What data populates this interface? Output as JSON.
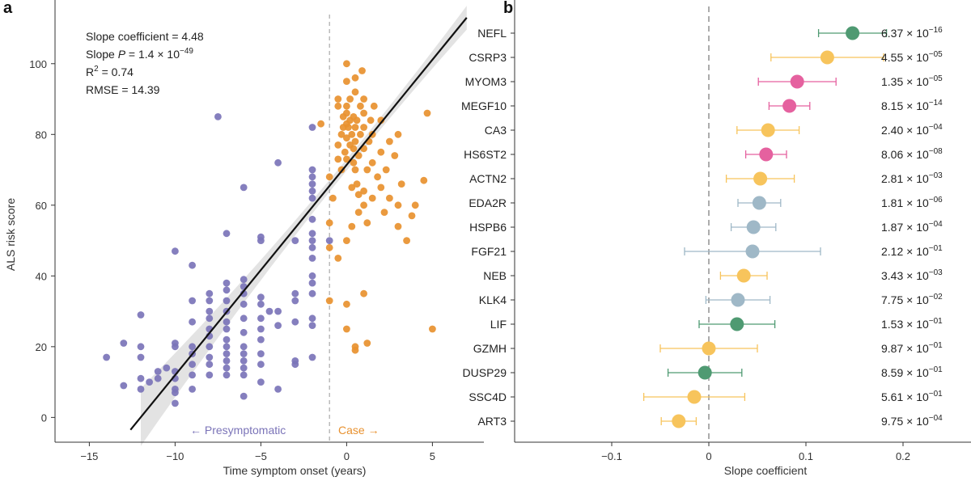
{
  "chart_data": [
    {
      "type": "scatter",
      "panel_label": "a",
      "xlabel": "Time symptom onset (years)",
      "ylabel": "ALS risk score",
      "xlim": [
        -17,
        8
      ],
      "ylim": [
        -7,
        118
      ],
      "xticks": [
        -15,
        -10,
        -5,
        0,
        5
      ],
      "yticks": [
        0,
        20,
        40,
        60,
        80,
        100
      ],
      "xtick_labels": [
        "−15",
        "−10",
        "−5",
        "0",
        "5"
      ],
      "ytick_labels": [
        "0",
        "20",
        "40",
        "60",
        "80",
        "100"
      ],
      "onset_line_x": -1,
      "annotations": {
        "presymptomatic": "← Presymptomatic",
        "case": "Case →"
      },
      "stats": {
        "slope": "Slope coefficient = 4.48",
        "slope_p_prefix": "Slope ",
        "slope_p_italic": "P",
        "slope_p_mid": " = 1.4 × 10",
        "slope_p_exp": "−49",
        "r2_prefix": "R",
        "r2_sup": "2",
        "r2_suffix": " = 0.74",
        "rmse": "RMSE = 14.39"
      },
      "regression": {
        "x": [
          -12.6,
          7.0
        ],
        "y": [
          -3.5,
          113
        ]
      },
      "series": [
        {
          "color": "#7b74b8",
          "points": [
            [
              -14,
              17
            ],
            [
              -13,
              9
            ],
            [
              -13,
              21
            ],
            [
              -12,
              8
            ],
            [
              -12,
              11
            ],
            [
              -12,
              17
            ],
            [
              -12,
              20
            ],
            [
              -12,
              29
            ],
            [
              -11.5,
              10
            ],
            [
              -11,
              11
            ],
            [
              -11,
              13
            ],
            [
              -10.5,
              14
            ],
            [
              -10,
              4
            ],
            [
              -10,
              7
            ],
            [
              -10,
              8
            ],
            [
              -10,
              11
            ],
            [
              -10,
              13
            ],
            [
              -10,
              20
            ],
            [
              -10,
              21
            ],
            [
              -10,
              47
            ],
            [
              -9,
              8
            ],
            [
              -9,
              12
            ],
            [
              -9,
              15
            ],
            [
              -9,
              18
            ],
            [
              -9,
              20
            ],
            [
              -9,
              27
            ],
            [
              -9,
              33
            ],
            [
              -9,
              43
            ],
            [
              -8,
              12
            ],
            [
              -8,
              15
            ],
            [
              -8,
              17
            ],
            [
              -8,
              20
            ],
            [
              -8,
              23
            ],
            [
              -8,
              25
            ],
            [
              -8,
              28
            ],
            [
              -8,
              30
            ],
            [
              -8,
              33
            ],
            [
              -8,
              35
            ],
            [
              -7.5,
              85
            ],
            [
              -7,
              12
            ],
            [
              -7,
              14
            ],
            [
              -7,
              16
            ],
            [
              -7,
              18
            ],
            [
              -7,
              20
            ],
            [
              -7,
              22
            ],
            [
              -7,
              25
            ],
            [
              -7,
              27
            ],
            [
              -7,
              30
            ],
            [
              -7,
              33
            ],
            [
              -7,
              36
            ],
            [
              -7,
              38
            ],
            [
              -7,
              52
            ],
            [
              -6,
              6
            ],
            [
              -6,
              12
            ],
            [
              -6,
              14
            ],
            [
              -6,
              16
            ],
            [
              -6,
              18
            ],
            [
              -6,
              20
            ],
            [
              -6,
              24
            ],
            [
              -6,
              28
            ],
            [
              -6,
              32
            ],
            [
              -6,
              35
            ],
            [
              -6,
              37
            ],
            [
              -6,
              39
            ],
            [
              -6,
              65
            ],
            [
              -5,
              10
            ],
            [
              -5,
              15
            ],
            [
              -5,
              18
            ],
            [
              -5,
              22
            ],
            [
              -5,
              25
            ],
            [
              -5,
              28
            ],
            [
              -5,
              32
            ],
            [
              -5,
              34
            ],
            [
              -5,
              50
            ],
            [
              -5,
              51
            ],
            [
              -4.5,
              30
            ],
            [
              -4,
              8
            ],
            [
              -4,
              26
            ],
            [
              -4,
              30
            ],
            [
              -4,
              72
            ],
            [
              -3,
              15
            ],
            [
              -3,
              16
            ],
            [
              -3,
              27
            ],
            [
              -3,
              33
            ],
            [
              -3,
              35
            ],
            [
              -3,
              50
            ],
            [
              -2,
              17
            ],
            [
              -2,
              26
            ],
            [
              -2,
              28
            ],
            [
              -2,
              35
            ],
            [
              -2,
              38
            ],
            [
              -2,
              40
            ],
            [
              -2,
              45
            ],
            [
              -2,
              48
            ],
            [
              -2,
              50
            ],
            [
              -2,
              52
            ],
            [
              -2,
              56
            ],
            [
              -2,
              62
            ],
            [
              -2,
              64
            ],
            [
              -2,
              66
            ],
            [
              -2,
              68
            ],
            [
              -2,
              70
            ],
            [
              -2,
              82
            ],
            [
              -1,
              50
            ]
          ]
        },
        {
          "color": "#e8912f",
          "points": [
            [
              -1.5,
              83
            ],
            [
              -1,
              68
            ],
            [
              -1,
              55
            ],
            [
              -1,
              48
            ],
            [
              -1,
              33
            ],
            [
              -0.8,
              62
            ],
            [
              -0.5,
              73
            ],
            [
              -0.5,
              77
            ],
            [
              -0.5,
              88
            ],
            [
              -0.5,
              90
            ],
            [
              -0.3,
              70
            ],
            [
              -0.3,
              80
            ],
            [
              -0.2,
              82
            ],
            [
              -0.2,
              85
            ],
            [
              -0.1,
              75
            ],
            [
              0,
              73
            ],
            [
              0,
              79
            ],
            [
              0,
              83
            ],
            [
              0,
              86
            ],
            [
              0,
              88
            ],
            [
              0,
              95
            ],
            [
              0,
              100
            ],
            [
              0.1,
              82
            ],
            [
              0.2,
              77
            ],
            [
              0.2,
              84
            ],
            [
              0.2,
              90
            ],
            [
              0.3,
              65
            ],
            [
              0.3,
              80
            ],
            [
              0.4,
              72
            ],
            [
              0.4,
              76
            ],
            [
              0.4,
              85
            ],
            [
              0.5,
              70
            ],
            [
              0.5,
              78
            ],
            [
              0.5,
              82
            ],
            [
              0.5,
              92
            ],
            [
              0.5,
              96
            ],
            [
              0.6,
              66
            ],
            [
              0.6,
              84
            ],
            [
              0.7,
              58
            ],
            [
              0.7,
              74
            ],
            [
              0.8,
              80
            ],
            [
              0.8,
              88
            ],
            [
              0.9,
              98
            ],
            [
              1,
              60
            ],
            [
              1,
              64
            ],
            [
              1,
              76
            ],
            [
              1,
              82
            ],
            [
              1,
              86
            ],
            [
              1,
              90
            ],
            [
              1.2,
              55
            ],
            [
              1.2,
              70
            ],
            [
              1.3,
              78
            ],
            [
              1.4,
              84
            ],
            [
              1.5,
              62
            ],
            [
              1.5,
              72
            ],
            [
              1.5,
              80
            ],
            [
              1.6,
              88
            ],
            [
              1.8,
              68
            ],
            [
              2,
              65
            ],
            [
              2,
              75
            ],
            [
              2,
              84
            ],
            [
              2.2,
              58
            ],
            [
              2.3,
              70
            ],
            [
              2.5,
              62
            ],
            [
              2.5,
              78
            ],
            [
              2.8,
              74
            ],
            [
              3,
              54
            ],
            [
              3,
              60
            ],
            [
              3,
              80
            ],
            [
              3.2,
              66
            ],
            [
              3.5,
              50
            ],
            [
              3.8,
              57
            ],
            [
              4,
              60
            ],
            [
              4.5,
              67
            ],
            [
              4.7,
              86
            ],
            [
              5,
              25
            ],
            [
              0,
              25
            ],
            [
              0,
              32
            ],
            [
              0.5,
              19
            ],
            [
              0.5,
              20
            ],
            [
              1,
              35
            ],
            [
              1.2,
              21
            ],
            [
              -0.5,
              45
            ],
            [
              0,
              50
            ],
            [
              0.3,
              54
            ],
            [
              0.7,
              63
            ]
          ]
        }
      ]
    },
    {
      "type": "forest",
      "panel_label": "b",
      "xlabel": "Slope coefficient",
      "xlim": [
        -0.2,
        0.27
      ],
      "xticks": [
        -0.1,
        0,
        0.1,
        0.2
      ],
      "xtick_labels": [
        "−0.1",
        "0",
        "0.1",
        "0.2"
      ],
      "rows": [
        {
          "gene": "NEFL",
          "est": 0.148,
          "lo": 0.113,
          "hi": 0.183,
          "color": "#4f9a72",
          "p_base": "6.37 × 10",
          "p_exp": "−16"
        },
        {
          "gene": "CSRP3",
          "est": 0.122,
          "lo": 0.064,
          "hi": 0.18,
          "color": "#f7c45c",
          "p_base": "4.55 × 10",
          "p_exp": "−05"
        },
        {
          "gene": "MYOM3",
          "est": 0.091,
          "lo": 0.051,
          "hi": 0.131,
          "color": "#e5619f",
          "p_base": "1.35 × 10",
          "p_exp": "−05"
        },
        {
          "gene": "MEGF10",
          "est": 0.083,
          "lo": 0.062,
          "hi": 0.104,
          "color": "#e5619f",
          "p_base": "8.15 × 10",
          "p_exp": "−14"
        },
        {
          "gene": "CA3",
          "est": 0.061,
          "lo": 0.029,
          "hi": 0.093,
          "color": "#f7c45c",
          "p_base": "2.40 × 10",
          "p_exp": "−04"
        },
        {
          "gene": "HS6ST2",
          "est": 0.059,
          "lo": 0.038,
          "hi": 0.08,
          "color": "#e5619f",
          "p_base": "8.06 × 10",
          "p_exp": "−08"
        },
        {
          "gene": "ACTN2",
          "est": 0.053,
          "lo": 0.018,
          "hi": 0.088,
          "color": "#f7c45c",
          "p_base": "2.81 × 10",
          "p_exp": "−03"
        },
        {
          "gene": "EDA2R",
          "est": 0.052,
          "lo": 0.03,
          "hi": 0.074,
          "color": "#9fb8c7",
          "p_base": "1.81 × 10",
          "p_exp": "−06"
        },
        {
          "gene": "HSPB6",
          "est": 0.046,
          "lo": 0.023,
          "hi": 0.069,
          "color": "#9fb8c7",
          "p_base": "1.87 × 10",
          "p_exp": "−04"
        },
        {
          "gene": "FGF21",
          "est": 0.045,
          "lo": -0.025,
          "hi": 0.115,
          "color": "#9fb8c7",
          "p_base": "2.12 × 10",
          "p_exp": "−01"
        },
        {
          "gene": "NEB",
          "est": 0.036,
          "lo": 0.012,
          "hi": 0.06,
          "color": "#f7c45c",
          "p_base": "3.43 × 10",
          "p_exp": "−03"
        },
        {
          "gene": "KLK4",
          "est": 0.03,
          "lo": -0.003,
          "hi": 0.063,
          "color": "#9fb8c7",
          "p_base": "7.75 × 10",
          "p_exp": "−02"
        },
        {
          "gene": "LIF",
          "est": 0.029,
          "lo": -0.01,
          "hi": 0.068,
          "color": "#4f9a72",
          "p_base": "1.53 × 10",
          "p_exp": "−01"
        },
        {
          "gene": "GZMH",
          "est": 0.0,
          "lo": -0.05,
          "hi": 0.05,
          "color": "#f7c45c",
          "p_base": "9.87 × 10",
          "p_exp": "−01"
        },
        {
          "gene": "DUSP29",
          "est": -0.004,
          "lo": -0.042,
          "hi": 0.034,
          "color": "#4f9a72",
          "p_base": "8.59 × 10",
          "p_exp": "−01"
        },
        {
          "gene": "SSC4D",
          "est": -0.015,
          "lo": -0.067,
          "hi": 0.037,
          "color": "#f7c45c",
          "p_base": "5.61 × 10",
          "p_exp": "−01"
        },
        {
          "gene": "ART3",
          "est": -0.031,
          "lo": -0.049,
          "hi": -0.013,
          "color": "#f7c45c",
          "p_base": "9.75 × 10",
          "p_exp": "−04"
        }
      ]
    }
  ]
}
